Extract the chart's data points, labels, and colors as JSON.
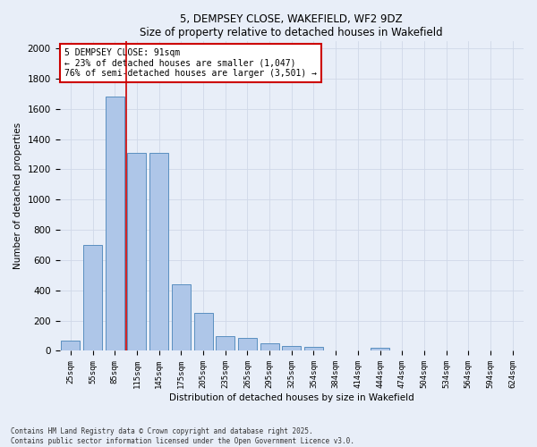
{
  "title1": "5, DEMPSEY CLOSE, WAKEFIELD, WF2 9DZ",
  "title2": "Size of property relative to detached houses in Wakefield",
  "xlabel": "Distribution of detached houses by size in Wakefield",
  "ylabel": "Number of detached properties",
  "categories": [
    "25sqm",
    "55sqm",
    "85sqm",
    "115sqm",
    "145sqm",
    "175sqm",
    "205sqm",
    "235sqm",
    "265sqm",
    "295sqm",
    "325sqm",
    "354sqm",
    "384sqm",
    "414sqm",
    "444sqm",
    "474sqm",
    "504sqm",
    "534sqm",
    "564sqm",
    "594sqm",
    "624sqm"
  ],
  "values": [
    70,
    700,
    1680,
    1310,
    1310,
    440,
    250,
    95,
    85,
    50,
    30,
    25,
    0,
    0,
    20,
    0,
    0,
    0,
    0,
    0,
    0
  ],
  "bar_color": "#aec6e8",
  "bar_edge_color": "#5a8fc0",
  "vline_color": "#cc0000",
  "annotation_text": "5 DEMPSEY CLOSE: 91sqm\n← 23% of detached houses are smaller (1,047)\n76% of semi-detached houses are larger (3,501) →",
  "annotation_box_color": "#ffffff",
  "annotation_box_edge": "#cc0000",
  "ylim": [
    0,
    2050
  ],
  "yticks": [
    0,
    200,
    400,
    600,
    800,
    1000,
    1200,
    1400,
    1600,
    1800,
    2000
  ],
  "grid_color": "#d0d8e8",
  "bg_color": "#e8eef8",
  "footer1": "Contains HM Land Registry data © Crown copyright and database right 2025.",
  "footer2": "Contains public sector information licensed under the Open Government Licence v3.0."
}
